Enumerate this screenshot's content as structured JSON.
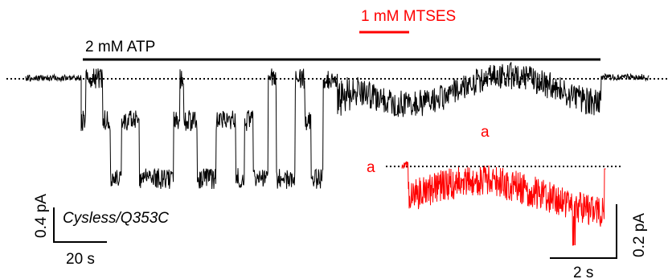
{
  "chart_data": {
    "type": "line",
    "title": "",
    "treatments": [
      {
        "name": "atp",
        "label": "2 mM ATP",
        "color": "#000000"
      },
      {
        "name": "mtses",
        "label": "1 mM MTSES",
        "color": "#ff0000"
      }
    ],
    "construct_label": "Cysless/Q353C",
    "main_trace": {
      "color": "#000000",
      "baseline_style": "dotted",
      "scale_bar": {
        "current_label": "0.4 pA",
        "time_label": "20 s",
        "current_pA": 0.4,
        "time_s": 20
      }
    },
    "expanded_trace": {
      "color": "#ff0000",
      "marker_label": "a",
      "marker_label_on_main": "a",
      "baseline_style": "dotted",
      "scale_bar": {
        "current_label": "0.2 pA",
        "time_label": "2 s",
        "current_pA": 0.2,
        "time_s": 2
      }
    },
    "grid": false,
    "legend": "none"
  }
}
